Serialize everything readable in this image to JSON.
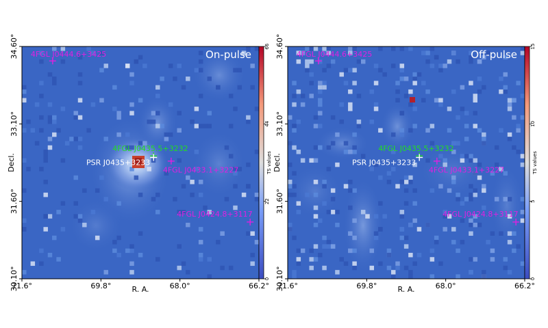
{
  "chart_data": [
    {
      "type": "heatmap",
      "panel_label": "On-pulse",
      "xlabel": "R. A.",
      "ylabel": "Decl.",
      "x_ticks": [
        "71.6°",
        "69.8°",
        "68.0°",
        "66.2°"
      ],
      "y_ticks": [
        "34.60°",
        "33.10°",
        "31.60°",
        "30.10°"
      ],
      "xlim": [
        71.6,
        66.2
      ],
      "ylim": [
        30.1,
        34.6
      ],
      "colorbar": {
        "label": "TS values",
        "ticks": [
          "0",
          "22",
          "44",
          "66"
        ],
        "range": [
          0,
          66
        ]
      },
      "peak_pixel": {
        "ra": 68.6,
        "dec": 32.48,
        "ts": 66
      },
      "sources": [
        {
          "name": "4FGL J0444.6+3425",
          "ra": 70.9,
          "dec": 34.32,
          "marker": "+",
          "color": "#e020e0"
        },
        {
          "name": "4FGL J0435.5+3232",
          "ra": 68.6,
          "dec": 32.48,
          "marker": "+",
          "color": "#22dd22"
        },
        {
          "name": "PSR J0435+3233",
          "ra": 68.6,
          "dec": 32.45,
          "marker": "+",
          "color": "#ffffff"
        },
        {
          "name": "4FGL J0433.1+3227",
          "ra": 68.2,
          "dec": 32.38,
          "marker": "+",
          "color": "#e020e0"
        },
        {
          "name": "4FGL J0424.8+3117",
          "ra": 66.4,
          "dec": 31.2,
          "marker": "+",
          "color": "#e020e0"
        }
      ]
    },
    {
      "type": "heatmap",
      "panel_label": "Off-pulse",
      "xlabel": "R. A.",
      "ylabel": "Decl.",
      "x_ticks": [
        "71.6°",
        "69.8°",
        "68.0°",
        "66.2°"
      ],
      "y_ticks": [
        "34.60°",
        "33.10°",
        "31.60°",
        "30.10°"
      ],
      "xlim": [
        71.6,
        66.2
      ],
      "ylim": [
        30.1,
        34.6
      ],
      "colorbar": {
        "label": "TS values",
        "ticks": [
          "0",
          "5",
          "10",
          "15"
        ],
        "range": [
          0,
          15
        ]
      },
      "peak_pixel": {
        "ra": 68.85,
        "dec": 33.33,
        "ts": 15
      },
      "sources": [
        {
          "name": "4FGL J0444.6+3425",
          "ra": 70.9,
          "dec": 34.32,
          "marker": "+",
          "color": "#e020e0"
        },
        {
          "name": "4FGL J0435.5+3232",
          "ra": 68.6,
          "dec": 32.48,
          "marker": "+",
          "color": "#22dd22"
        },
        {
          "name": "PSR J0435+3233",
          "ra": 68.6,
          "dec": 32.45,
          "marker": "+",
          "color": "#ffffff"
        },
        {
          "name": "4FGL J0433.1+3227",
          "ra": 68.2,
          "dec": 32.38,
          "marker": "+",
          "color": "#e020e0"
        },
        {
          "name": "4FGL J0424.8+3117",
          "ra": 66.4,
          "dec": 31.2,
          "marker": "+",
          "color": "#e020e0"
        }
      ]
    }
  ],
  "colors": {
    "background_map": "#3a66c4",
    "colormap_low": "#3b4cc0",
    "colormap_mid": "#dddddd",
    "colormap_high": "#b40426"
  }
}
